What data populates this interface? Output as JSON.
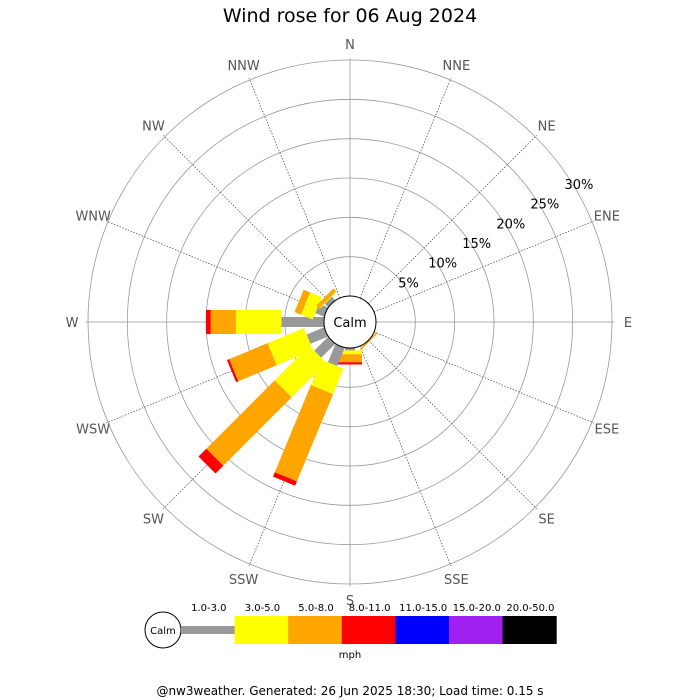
{
  "title": "Wind rose for 06 Aug 2024",
  "footer": "@nw3weather. Generated: 26 Jun 2025 18:30; Load time: 0.15 s",
  "chart_data": {
    "type": "windrose",
    "directions": [
      "N",
      "NNE",
      "NE",
      "ENE",
      "E",
      "ESE",
      "SE",
      "SSE",
      "S",
      "SSW",
      "SW",
      "WSW",
      "W",
      "WNW",
      "NW",
      "NNW"
    ],
    "radial_ticks": [
      "5%",
      "10%",
      "15%",
      "20%",
      "25%",
      "30%"
    ],
    "radial_tick_values": [
      5,
      10,
      15,
      20,
      25,
      30
    ],
    "rmax": 30,
    "calm_label": "Calm",
    "unit_label": "mph",
    "speed_bins": [
      {
        "label": "1.0-3.0",
        "color": "#999999"
      },
      {
        "label": "3.0-5.0",
        "color": "#ffff00"
      },
      {
        "label": "5.0-8.0",
        "color": "#ffa500"
      },
      {
        "label": "8.0-11.0",
        "color": "#ff0000"
      },
      {
        "label": "11.0-15.0",
        "color": "#0000ff"
      },
      {
        "label": "15.0-20.0",
        "color": "#a020f0"
      },
      {
        "label": "20.0-50.0",
        "color": "#000000"
      }
    ],
    "sectors": [
      {
        "dir": "N",
        "values": [
          0,
          0,
          0,
          0,
          0,
          0,
          0
        ]
      },
      {
        "dir": "NNE",
        "values": [
          0,
          0,
          0,
          0,
          0,
          0,
          0
        ]
      },
      {
        "dir": "NE",
        "values": [
          0,
          0,
          0,
          0,
          0,
          0,
          0
        ]
      },
      {
        "dir": "ENE",
        "values": [
          0,
          0,
          0,
          0,
          0,
          0,
          0
        ]
      },
      {
        "dir": "E",
        "values": [
          0,
          0,
          0,
          0,
          0,
          0,
          0
        ]
      },
      {
        "dir": "ESE",
        "values": [
          0,
          0,
          0,
          0,
          0,
          0,
          0
        ]
      },
      {
        "dir": "SE",
        "values": [
          0,
          0,
          0.2,
          0,
          0,
          0,
          0
        ]
      },
      {
        "dir": "SSE",
        "values": [
          0,
          0,
          0,
          0,
          0,
          0,
          0
        ]
      },
      {
        "dir": "S",
        "values": [
          0.3,
          0.5,
          1.0,
          0.3,
          0,
          0,
          0
        ]
      },
      {
        "dir": "SSW",
        "values": [
          2.5,
          3.5,
          12.0,
          0.6,
          0,
          0,
          0
        ]
      },
      {
        "dir": "SW",
        "values": [
          2.5,
          6.2,
          12.3,
          1.4,
          0,
          0,
          0
        ]
      },
      {
        "dir": "WSW",
        "values": [
          2.4,
          5.0,
          5.3,
          0.3,
          0,
          0,
          0
        ]
      },
      {
        "dir": "W",
        "values": [
          5.4,
          5.8,
          3.2,
          0.6,
          0,
          0,
          0
        ]
      },
      {
        "dir": "WNW",
        "values": [
          1.2,
          1.6,
          0.9,
          0,
          0,
          0,
          0
        ]
      },
      {
        "dir": "NW",
        "values": [
          0.6,
          0.1,
          0.5,
          0,
          0,
          0,
          0
        ]
      },
      {
        "dir": "NNW",
        "values": [
          0,
          0,
          0,
          0,
          0,
          0,
          0
        ]
      }
    ]
  }
}
